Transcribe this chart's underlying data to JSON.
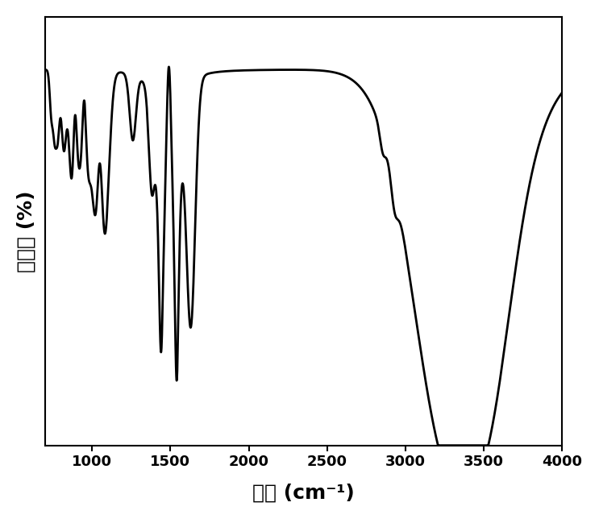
{
  "xlabel": "波数 (cm⁻¹)",
  "ylabel": "透过率 (%)",
  "xlim": [
    4000,
    700
  ],
  "background_color": "#ffffff",
  "line_color": "#000000",
  "line_width": 2.0,
  "tick_fontsize": 13,
  "label_fontsize": 18,
  "xticks": [
    4000,
    3500,
    3000,
    2500,
    2000,
    1500,
    1000
  ]
}
